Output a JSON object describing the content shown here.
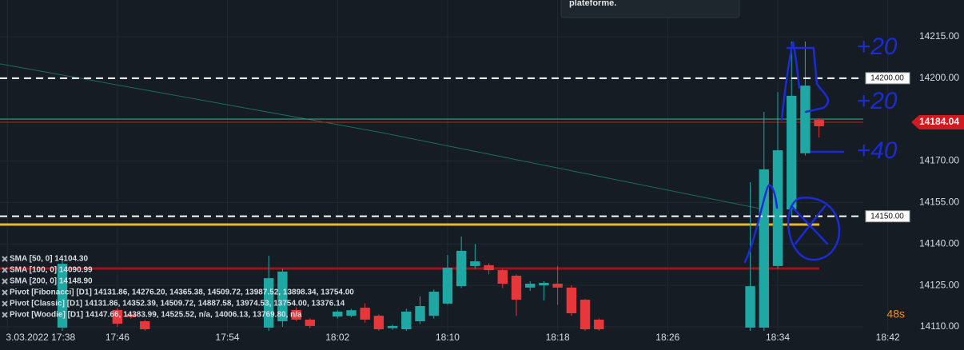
{
  "chart_data": {
    "type": "candlestick",
    "x": [
      "17:42",
      "17:46",
      "17:47",
      "17:48",
      "17:57",
      "17:58",
      "17:59",
      "18:00",
      "18:02",
      "18:03",
      "18:04",
      "18:05",
      "18:06",
      "18:07",
      "18:08",
      "18:09",
      "18:10",
      "18:11",
      "18:12",
      "18:13",
      "18:14",
      "18:15",
      "18:16",
      "18:17",
      "18:18",
      "18:19",
      "18:20",
      "18:21",
      "18:32",
      "18:33",
      "18:34",
      "18:35",
      "18:36",
      "18:37"
    ],
    "open": [
      14109.7,
      14116.1,
      14114.5,
      14112,
      14109.7,
      14112,
      14116.1,
      14112.6,
      14113.7,
      14114,
      14116.9,
      14114,
      14109.5,
      14109.1,
      14112,
      14114,
      14118.4,
      14124.7,
      14132,
      14132.3,
      14130.5,
      14128.5,
      14124.2,
      14125,
      14125.6,
      14124.2,
      14119.8,
      14112.6,
      14109.7,
      14109.7,
      14132,
      14152.5,
      14172.8,
      14184.9
    ],
    "high": [
      14135.7,
      14116.8,
      14115,
      14112.6,
      14135.7,
      14131,
      14117,
      14113,
      14116,
      14116.5,
      14118.5,
      14114.5,
      14110.8,
      14116.5,
      14121,
      14123.5,
      14136,
      14142.7,
      14140,
      14133,
      14131,
      14129,
      14126.5,
      14126.5,
      14132,
      14125,
      14120,
      14113,
      14162.3,
      14187.8,
      14195,
      14213.3,
      14213.3,
      14185.5
    ],
    "low": [
      14105,
      14110,
      14113,
      14108,
      14108,
      14110,
      14112,
      14109.5,
      14113,
      14113.5,
      14111.5,
      14108.5,
      14109,
      14108.5,
      14111,
      14113,
      14118,
      14124,
      14131,
      14129,
      14124,
      14114,
      14123,
      14119.5,
      14118,
      14114,
      14108,
      14108,
      14108,
      14108,
      14131,
      14150,
      14172,
      14178.5
    ],
    "close": [
      14132.8,
      14111.1,
      14113.5,
      14109.1,
      14127.6,
      14130,
      14112.6,
      14110.3,
      14115.5,
      14116,
      14112.6,
      14109.1,
      14110.3,
      14115.5,
      14117.5,
      14122.7,
      14131.4,
      14137.5,
      14133.7,
      14130.5,
      14125.6,
      14119.8,
      14125.6,
      14125.9,
      14124.2,
      14114.9,
      14109.1,
      14109.1,
      14124.7,
      14167,
      14173.9,
      14193.6,
      14197.3,
      14182.6
    ],
    "up_color": "#1fa7a4",
    "down_color": "#e8373a",
    "xlim": [
      "17:37:28",
      "18:40:13"
    ],
    "xticks": [
      {
        "value": "17:38",
        "label": "3.03.2022 17:38"
      },
      "17:46",
      "17:54",
      "18:02",
      "18:10",
      "18:18",
      "18:26",
      "18:34",
      "18:42"
    ],
    "ylim": [
      14101.6,
      14228.3
    ],
    "yticks": [
      {
        "value": 14110,
        "label": "14110.00"
      },
      {
        "value": 14125,
        "label": "14125.00"
      },
      {
        "value": 14140,
        "label": "14140.00"
      },
      {
        "value": 14155,
        "label": "14155.00"
      },
      {
        "value": 14170,
        "label": "14170.00"
      },
      {
        "value": 14185,
        "label": "14185.00"
      },
      {
        "value": 14200,
        "label": "14200.00"
      },
      {
        "value": 14215,
        "label": "14215.00"
      }
    ],
    "grid": true,
    "levels": [
      {
        "value": 14200,
        "label": "14200.00"
      },
      {
        "value": 14150,
        "label": "14150.00"
      }
    ],
    "price": {
      "value": 14184.04,
      "label": "14184.04",
      "color": "#d01a1f"
    },
    "hlines": [
      {
        "value": 14185.2,
        "color": "#2bb38a"
      },
      {
        "value": 14147,
        "color": "#e8b92a"
      },
      {
        "value": 14131.1,
        "color": "#a0121a"
      }
    ],
    "sma_line": {
      "x": [
        "17:37:28",
        "18:05",
        "18:33"
      ],
      "values": [
        14205.2,
        14180.5,
        14152.5
      ],
      "color": "#1d6b5e"
    },
    "legend": [
      "SMA [50, 0] 14104.30",
      "SMA [100, 0] 14090.99",
      "SMA [200, 0] 14148.90",
      "Pivot [Fibonacci] [D1] 14131.86, 14276.20, 14365.38, 14509.72, 13987.52, 13898.34, 13754.00",
      "Pivot [Classic] [D1] 14131.86, 14352.39, 14509.72, 14887.58, 13974.53, 13754.00, 13376.14",
      "Pivot [Woodie] [D1] 14147.66, 14383.99, 14525.52, n/a, 14006.13, 13769.80, n/a"
    ],
    "countdown": "48s",
    "annotations": [
      "+20",
      "+20",
      "+40"
    ]
  },
  "popup": {
    "text": "plateforme."
  }
}
